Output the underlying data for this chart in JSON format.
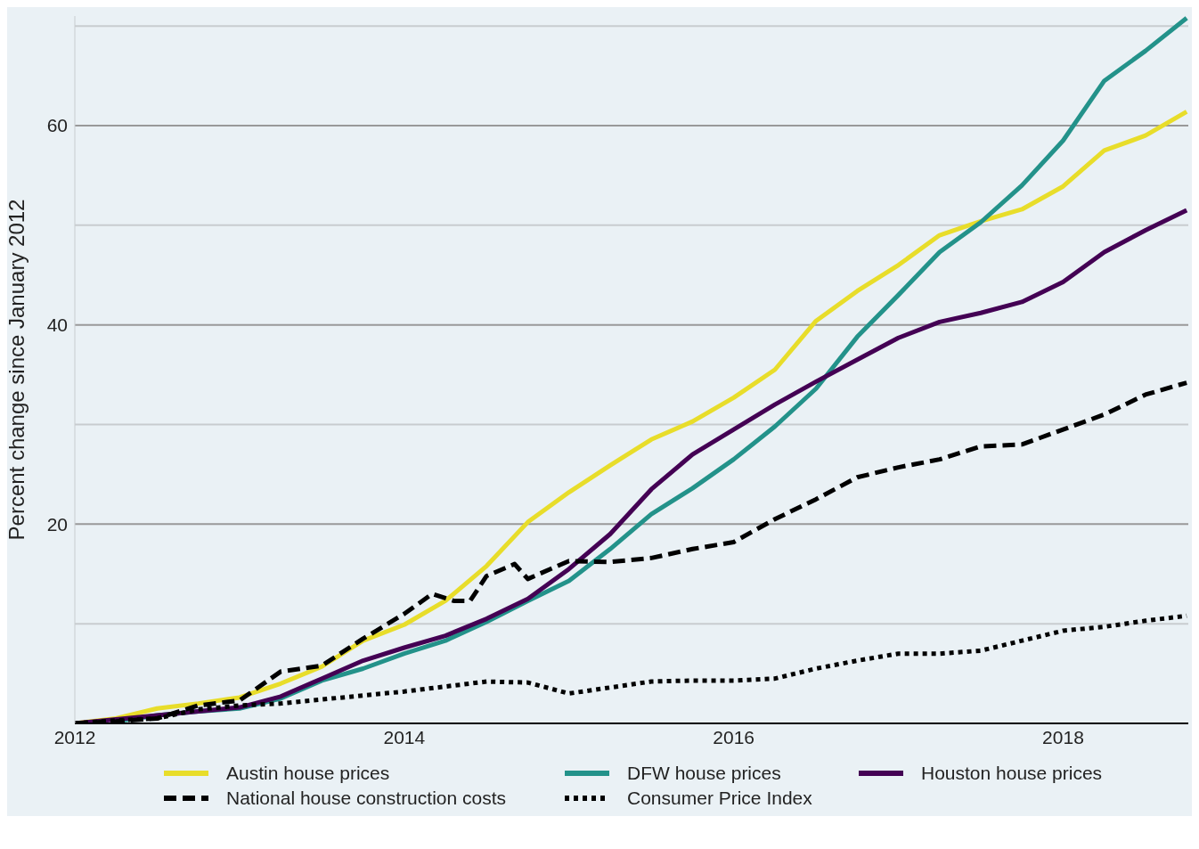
{
  "chart_data": {
    "type": "line",
    "ylabel": "Percent change since January 2012",
    "x": [
      2012,
      2012.25,
      2012.5,
      2012.75,
      2013,
      2013.25,
      2013.5,
      2013.75,
      2014,
      2014.25,
      2014.5,
      2014.75,
      2015,
      2015.25,
      2015.5,
      2015.75,
      2016,
      2016.25,
      2016.5,
      2016.75,
      2017,
      2017.25,
      2017.5,
      2017.75,
      2018,
      2018.25,
      2018.5,
      2018.75
    ],
    "series": [
      {
        "name": "Austin house prices",
        "color": "#e8dd2a",
        "line_style": "solid",
        "values": [
          0,
          0.5,
          1.5,
          2,
          2.6,
          4,
          5.7,
          8.3,
          9.9,
          12.3,
          15.8,
          20.2,
          23.2,
          25.9,
          28.5,
          30.3,
          32.7,
          35.5,
          40.4,
          43.4,
          46,
          49,
          50.4,
          51.6,
          53.9,
          57.5,
          59,
          61.4
        ]
      },
      {
        "name": "DFW house prices",
        "color": "#23928a",
        "line_style": "solid",
        "values": [
          null,
          0.2,
          0.8,
          1.2,
          1.5,
          2.5,
          4.3,
          5.5,
          7,
          8.3,
          10.2,
          12.3,
          14.3,
          17.5,
          21,
          23.6,
          26.5,
          29.8,
          33.6,
          38.8,
          43,
          47.3,
          50.3,
          54,
          58.5,
          64.5,
          67.5,
          70.8
        ]
      },
      {
        "name": "Houston house prices",
        "color": "#440154",
        "line_style": "solid",
        "values": [
          0,
          0.4,
          0.8,
          1.2,
          1.6,
          2.7,
          4.5,
          6.3,
          7.6,
          8.8,
          10.5,
          12.5,
          15.5,
          19,
          23.5,
          27,
          29.5,
          32,
          34.3,
          36.5,
          38.7,
          40.3,
          41.2,
          42.3,
          44.3,
          47.3,
          49.5,
          51.5
        ]
      },
      {
        "name": "National house construction costs",
        "color": "#000000",
        "line_style": "dashed",
        "x": [
          2012,
          2012.25,
          2012.5,
          2012.75,
          2013,
          2013.25,
          2013.5,
          2013.75,
          2014,
          2014.17,
          2014.3,
          2014.4,
          2014.5,
          2014.67,
          2014.75,
          2015,
          2015.25,
          2015.5,
          2015.75,
          2016,
          2016.25,
          2016.5,
          2016.75,
          2017,
          2017.25,
          2017.5,
          2017.75,
          2018,
          2018.25,
          2018.5,
          2018.75
        ],
        "values": [
          0,
          0.2,
          0.5,
          1.8,
          2.3,
          5.2,
          5.8,
          8.5,
          11,
          13,
          12.3,
          12.3,
          14.8,
          16,
          14.5,
          16.3,
          16.2,
          16.6,
          17.5,
          18.2,
          20.5,
          22.5,
          24.7,
          25.7,
          26.5,
          27.8,
          28,
          29.5,
          31,
          33,
          34.2
        ]
      },
      {
        "name": "Consumer Price Index",
        "color": "#000000",
        "line_style": "dotted",
        "values": [
          0,
          0.3,
          0.5,
          1.4,
          1.8,
          2,
          2.4,
          2.8,
          3.2,
          3.7,
          4.2,
          4.1,
          3,
          3.6,
          4.2,
          4.3,
          4.3,
          4.5,
          5.5,
          6.3,
          7,
          7,
          7.3,
          8.3,
          9.3,
          9.7,
          10.3,
          10.8
        ]
      }
    ],
    "xlim": [
      2012,
      2018.76
    ],
    "xticks": [
      2012,
      2014,
      2016,
      2018
    ],
    "ylim": [
      0,
      71
    ],
    "yticks": [
      {
        "value": 10,
        "label": null
      },
      20,
      {
        "value": 30,
        "label": null
      },
      40,
      {
        "value": 50,
        "label": null
      },
      60,
      {
        "value": 70,
        "label": null
      }
    ],
    "grid": "y",
    "legend": "bottom",
    "marker": "none"
  }
}
